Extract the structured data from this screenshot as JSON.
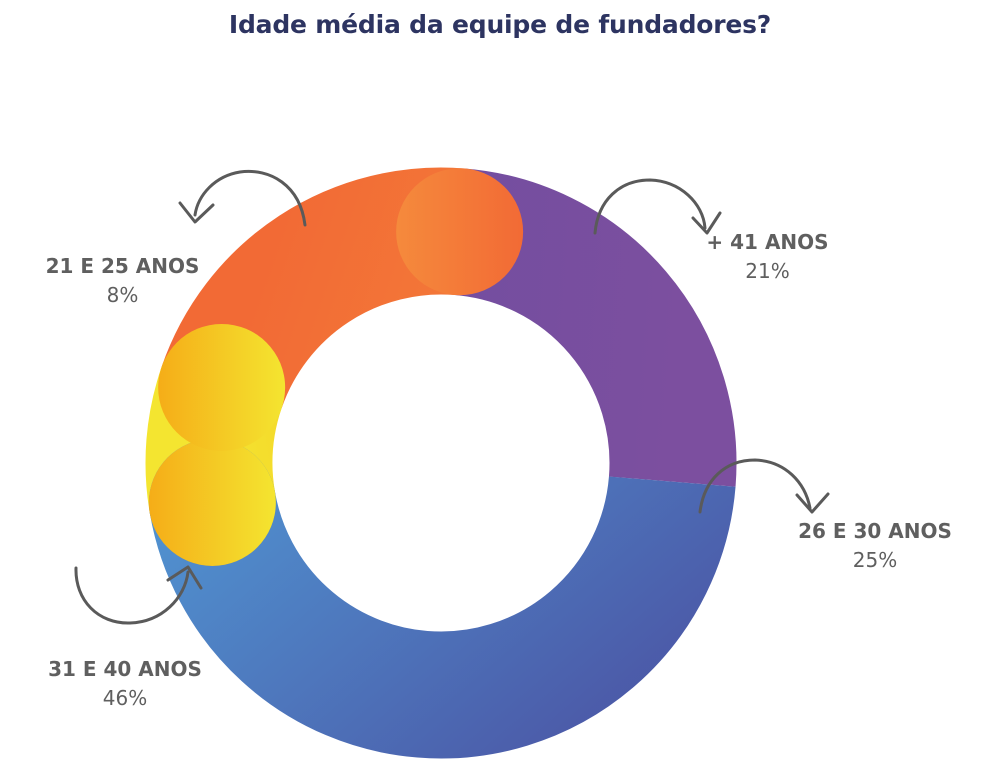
{
  "chart_data": {
    "type": "pie",
    "title": "Idade média da equipe de fundadores?",
    "categories": [
      "+ 41 ANOS",
      "26 E 30 ANOS",
      "31 E 40 ANOS",
      "21 E 25 ANOS"
    ],
    "values": [
      21,
      25,
      46,
      8
    ],
    "value_labels": [
      "21%",
      "25%",
      "46%",
      "8%"
    ],
    "colors": {
      "+ 41 ANOS": [
        "#f58a3c",
        "#f26a35"
      ],
      "26 E 30 ANOS": [
        "#6b4da0",
        "#7c4f9f"
      ],
      "31 E 40 ANOS": [
        "#52a9e0",
        "#4b57a6"
      ],
      "21 E 25 ANOS": [
        "#f5ad18",
        "#f4e530"
      ]
    },
    "style": "donut",
    "legend": "none"
  }
}
